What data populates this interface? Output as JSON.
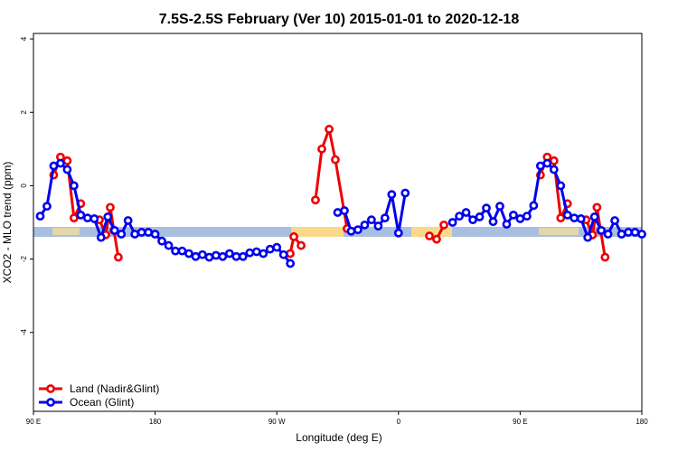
{
  "chart_data": {
    "type": "line",
    "title": "7.5S-2.5S February (Ver 10)   2015-01-01 to 2020-12-18",
    "x_label": "Longitude (deg E)",
    "y_label": "XCO2 - MLO trend (ppm)",
    "xlim": [
      90,
      540
    ],
    "xticks": [
      {
        "value": 90,
        "label": "90 E"
      },
      180,
      {
        "value": 270,
        "label": "90 W"
      },
      {
        "value": 360,
        "label": "0"
      },
      {
        "value": 450,
        "label": "90 E"
      },
      {
        "value": 540,
        "label": "180"
      }
    ],
    "ylim": [
      -6.15,
      4.15
    ],
    "yticks": [
      -4,
      -2,
      0,
      2,
      4
    ],
    "legend": "bottom-left",
    "series": [
      {
        "name": "Land (Nadir&Glint)",
        "color": "#ee0000",
        "x": [
          105,
          110,
          115,
          120,
          125,
          130,
          138.8,
          143.5,
          146.8,
          149.5,
          152.8,
          200,
          279.9,
          282.6,
          288,
          293,
          298.6,
          303.3,
          308.7,
          313.3,
          322,
          350,
          382.9,
          388.2,
          393.6,
          430,
          465,
          470,
          475,
          480,
          485,
          490,
          498.8,
          503.5,
          506.8,
          509.5,
          512.8
        ],
        "values": [
          0.29,
          0.78,
          0.68,
          -0.88,
          -0.49,
          null,
          -0.93,
          -1.34,
          -0.59,
          -1.22,
          -1.95,
          null,
          -1.85,
          -1.39,
          -1.63,
          null,
          -0.39,
          1.0,
          1.54,
          0.71,
          -1.17,
          null,
          -1.37,
          -1.46,
          -1.07,
          null,
          0.29,
          0.78,
          0.68,
          -0.88,
          -0.49,
          null,
          -0.93,
          -1.34,
          -0.59,
          -1.22,
          -1.95
        ]
      },
      {
        "name": "Ocean (Glint)",
        "color": "#0000ee",
        "x": [
          95,
          100,
          105,
          110,
          115,
          120,
          125,
          130,
          135,
          140,
          145,
          150,
          155,
          160,
          165,
          170,
          175,
          180,
          185,
          190,
          195,
          200,
          205,
          210,
          215,
          220,
          225,
          230,
          235,
          240,
          245,
          250,
          255,
          260,
          265,
          270,
          275,
          280,
          285,
          290,
          295,
          300,
          305,
          310,
          315,
          320,
          325,
          330,
          335,
          340,
          345,
          350,
          355,
          360,
          365,
          370,
          375,
          380,
          385,
          390,
          395,
          400,
          405,
          410,
          415,
          420,
          425,
          430,
          435,
          440,
          445,
          450,
          455,
          460,
          465,
          470,
          475,
          480,
          485,
          490,
          495,
          500,
          505,
          510,
          515,
          520,
          525,
          530,
          535,
          540
        ],
        "values": [
          -0.83,
          -0.56,
          0.54,
          0.61,
          0.44,
          0,
          -0.8,
          -0.88,
          -0.9,
          -1.41,
          -0.85,
          -1.22,
          -1.32,
          -0.95,
          -1.32,
          -1.27,
          -1.27,
          -1.32,
          -1.51,
          -1.63,
          -1.78,
          -1.78,
          -1.85,
          -1.93,
          -1.88,
          -1.95,
          -1.9,
          -1.93,
          -1.85,
          -1.93,
          -1.93,
          -1.83,
          -1.8,
          -1.85,
          -1.73,
          -1.68,
          -1.88,
          -2.12,
          null,
          null,
          null,
          null,
          null,
          null,
          -0.73,
          -0.68,
          -1.24,
          -1.2,
          -1.07,
          -0.93,
          -1.1,
          -0.88,
          -0.24,
          -1.29,
          -0.2,
          null,
          null,
          null,
          null,
          null,
          null,
          -1,
          -0.83,
          -0.73,
          -0.93,
          -0.85,
          -0.61,
          -0.98,
          -0.56,
          -1.05,
          -0.8,
          -0.9,
          -0.83,
          -0.54,
          0.54,
          0.61,
          0.44,
          0,
          -0.8,
          -0.88,
          -0.9,
          -1.41,
          -0.85,
          -1.22,
          -1.32,
          -0.95,
          -1.32,
          -1.27,
          -1.27,
          -1.32
        ]
      }
    ]
  }
}
